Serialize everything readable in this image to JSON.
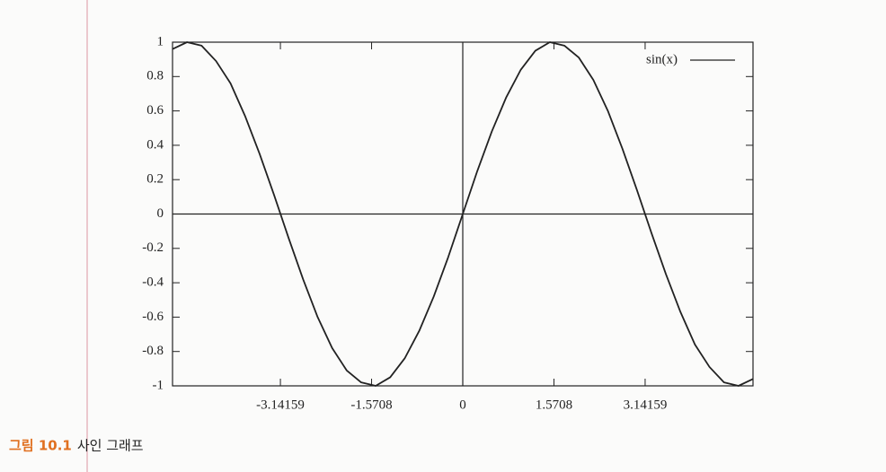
{
  "chart_data": {
    "type": "line",
    "x": [
      -5,
      -4.75,
      -4.5,
      -4.25,
      -4,
      -3.75,
      -3.5,
      -3.25,
      -3,
      -2.75,
      -2.5,
      -2.25,
      -2,
      -1.75,
      -1.5,
      -1.25,
      -1,
      -0.75,
      -0.5,
      -0.25,
      0,
      0.25,
      0.5,
      0.75,
      1,
      1.25,
      1.5,
      1.75,
      2,
      2.25,
      2.5,
      2.75,
      3,
      3.25,
      3.5,
      3.75,
      4,
      4.25,
      4.5,
      4.75,
      5
    ],
    "series": [
      {
        "name": "sin(x)",
        "color": "#222222",
        "values": [
          0.96,
          1.0,
          0.98,
          0.89,
          0.76,
          0.57,
          0.35,
          0.11,
          -0.14,
          -0.38,
          -0.6,
          -0.78,
          -0.91,
          -0.98,
          -1.0,
          -0.95,
          -0.84,
          -0.68,
          -0.48,
          -0.25,
          0,
          0.25,
          0.48,
          0.68,
          0.84,
          0.95,
          1.0,
          0.98,
          0.91,
          0.78,
          0.6,
          0.38,
          0.14,
          -0.11,
          -0.35,
          -0.57,
          -0.76,
          -0.89,
          -0.98,
          -1.0,
          -0.96
        ]
      }
    ],
    "xlim": [
      -5,
      5
    ],
    "ylim": [
      -1,
      1
    ],
    "xticks": [
      -3.14159,
      -1.5708,
      0,
      1.5708,
      3.14159
    ],
    "yticks": [
      1,
      0.8,
      0.6,
      0.4,
      0.2,
      0,
      -0.2,
      -0.4,
      -0.6,
      -0.8,
      -1
    ],
    "zeroaxis": true,
    "legend": "top-right"
  },
  "caption": {
    "label": "그림 10.1",
    "text": "사인 그래프"
  }
}
